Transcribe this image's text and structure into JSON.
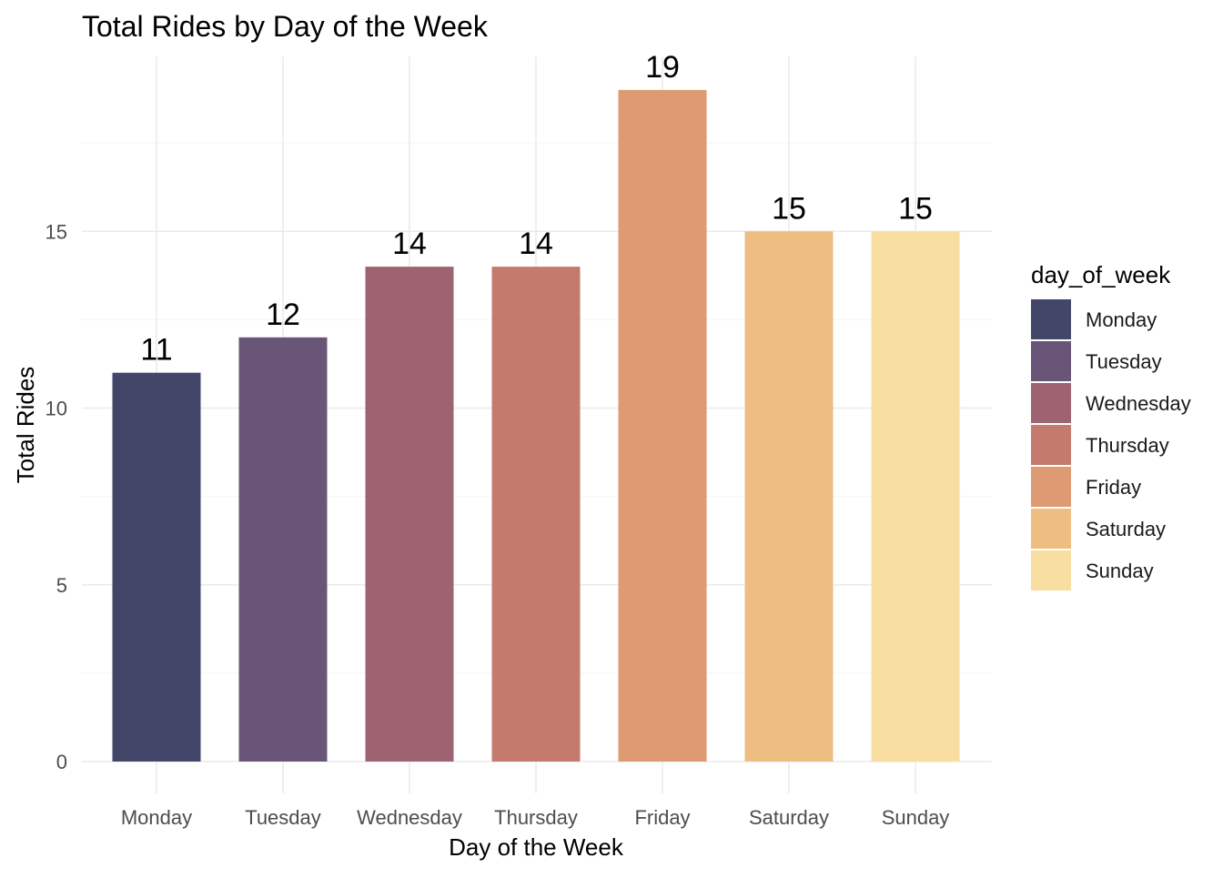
{
  "chart_data": {
    "type": "bar",
    "title": "Total Rides by Day of the Week",
    "xlabel": "Day of the Week",
    "ylabel": "Total Rides",
    "categories": [
      "Monday",
      "Tuesday",
      "Wednesday",
      "Thursday",
      "Friday",
      "Saturday",
      "Sunday"
    ],
    "values": [
      11,
      12,
      14,
      14,
      19,
      15,
      15
    ],
    "data_labels": [
      "11",
      "12",
      "14",
      "14",
      "19",
      "15",
      "15"
    ],
    "colors": [
      "#42476a",
      "#685577",
      "#9e6370",
      "#c47b6e",
      "#dd9a73",
      "#eebd82",
      "#f9dea1"
    ],
    "ylim": [
      0,
      19.5
    ],
    "yticks": [
      0,
      5,
      10,
      15
    ],
    "ytick_labels": [
      "0",
      "5",
      "10",
      "15"
    ],
    "grid": true,
    "legend": {
      "title": "day_of_week",
      "placement": "right",
      "entries": [
        "Monday",
        "Tuesday",
        "Wednesday",
        "Thursday",
        "Friday",
        "Saturday",
        "Sunday"
      ]
    }
  }
}
